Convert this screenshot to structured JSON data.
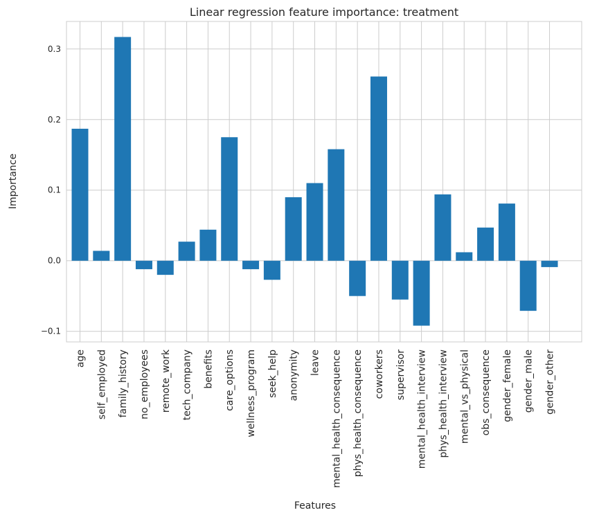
{
  "chart_data": {
    "type": "bar",
    "title": "Linear regression feature importance: treatment",
    "xlabel": "Features",
    "ylabel": "Importance",
    "ylim": [
      -0.115,
      0.339
    ],
    "grid": true,
    "bar_color": "#1f77b4",
    "yticks": [
      -0.1,
      0.0,
      0.1,
      0.2,
      0.3
    ],
    "ytick_labels": [
      "−0.1",
      "0.0",
      "0.1",
      "0.2",
      "0.3"
    ],
    "categories": [
      "age",
      "self_employed",
      "family_history",
      "no_employees",
      "remote_work",
      "tech_company",
      "benefits",
      "care_options",
      "wellness_program",
      "seek_help",
      "anonymity",
      "leave",
      "mental_health_consequence",
      "phys_health_consequence",
      "coworkers",
      "supervisor",
      "mental_health_interview",
      "phys_health_interview",
      "mental_vs_physical",
      "obs_consequence",
      "gender_female",
      "gender_male",
      "gender_other"
    ],
    "values": [
      0.187,
      0.014,
      0.317,
      -0.012,
      -0.02,
      0.027,
      0.044,
      0.175,
      -0.012,
      -0.027,
      0.09,
      0.11,
      0.158,
      -0.05,
      0.261,
      -0.055,
      -0.092,
      0.094,
      0.012,
      0.047,
      0.081,
      -0.071,
      -0.009
    ]
  }
}
